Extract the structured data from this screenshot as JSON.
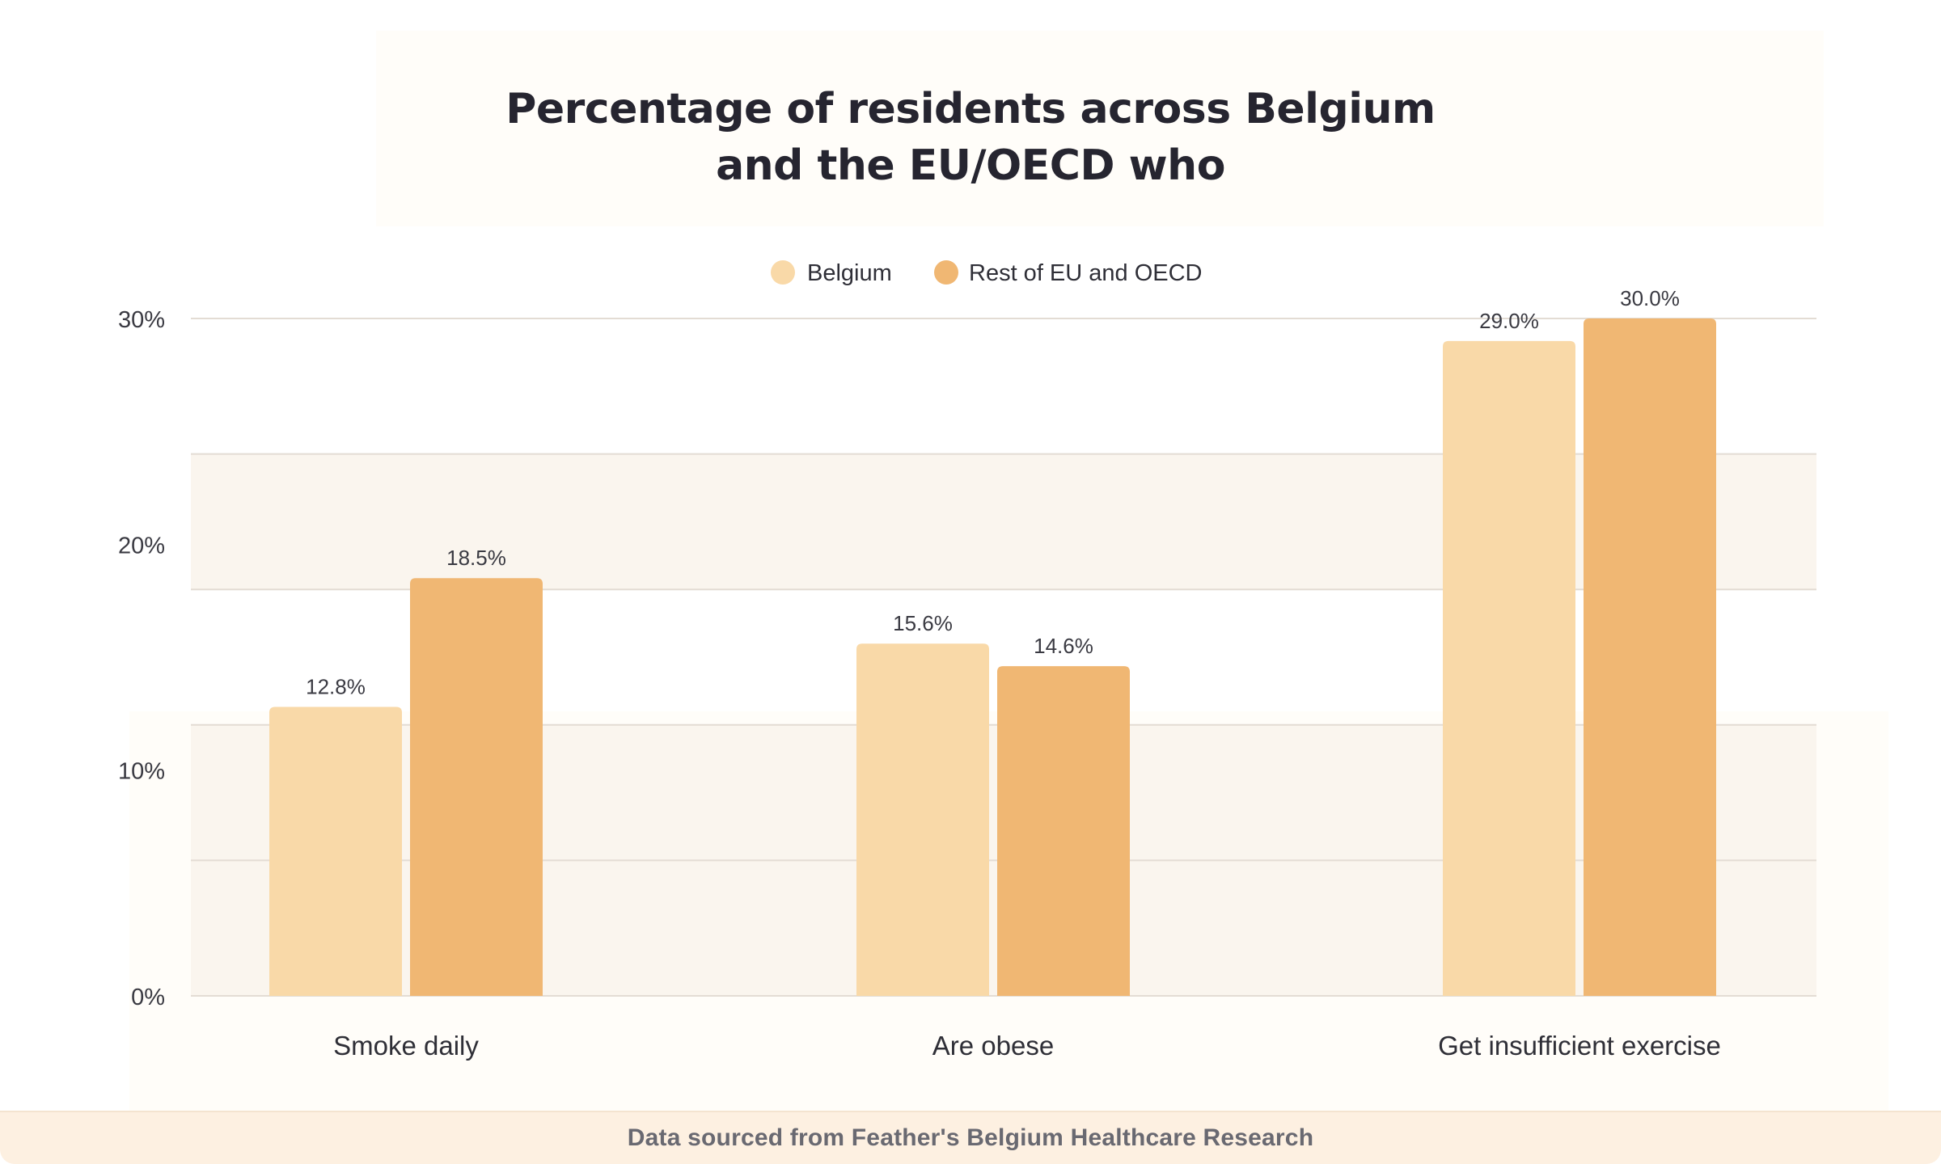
{
  "chart_data": {
    "type": "bar",
    "title_lines": [
      "Percentage of residents across Belgium",
      "and the EU/OECD who"
    ],
    "categories": [
      "Smoke daily",
      "Are obese",
      "Get insufficient exercise"
    ],
    "series": [
      {
        "name": "Belgium",
        "color": "#f9d9a8",
        "values": [
          12.8,
          15.6,
          29.0
        ],
        "value_labels": [
          "12.8%",
          "15.6%",
          "29.0%"
        ]
      },
      {
        "name": "Rest of EU and OECD",
        "color": "#f0b773",
        "values": [
          18.5,
          14.6,
          30.0
        ],
        "value_labels": [
          "18.5%",
          "14.6%",
          "30.0%"
        ]
      }
    ],
    "ylim": [
      0,
      30
    ],
    "yticks": [
      0,
      10,
      20,
      30
    ],
    "ytick_labels": [
      "0%",
      "10%",
      "20%",
      "30%"
    ],
    "gridline_values": [
      0,
      6,
      12,
      18,
      24,
      30
    ],
    "grid": true,
    "legend_position": "top-center",
    "xlabel": "",
    "ylabel": ""
  },
  "footer": {
    "text": "Data sourced from Feather's Belgium Healthcare Research"
  }
}
